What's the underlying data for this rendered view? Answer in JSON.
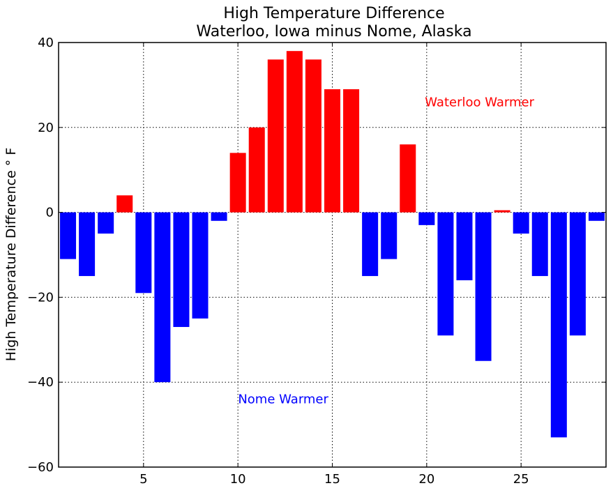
{
  "chart_data": {
    "type": "bar",
    "title": "High Temperature Difference",
    "subtitle": "Waterloo, Iowa minus Nome, Alaska",
    "xlabel": "",
    "ylabel": "High Temperature Difference $^\\circ$F",
    "ylabel_display": "High Temperature Difference ° F",
    "xlim": [
      0.5,
      29.5
    ],
    "ylim": [
      -60,
      40
    ],
    "x_ticks": [
      5,
      10,
      15,
      20,
      25
    ],
    "x_tick_labels": [
      "5",
      "10",
      "15",
      "20",
      "25"
    ],
    "y_ticks": [
      -60,
      -40,
      -20,
      0,
      20,
      40
    ],
    "y_tick_labels": [
      "−60",
      "−40",
      "−20",
      "0",
      "20",
      "40"
    ],
    "grid": true,
    "x": [
      1,
      2,
      3,
      4,
      5,
      6,
      7,
      8,
      9,
      10,
      11,
      12,
      13,
      14,
      15,
      16,
      17,
      18,
      19,
      20,
      21,
      22,
      23,
      24,
      25,
      26,
      27,
      28,
      29
    ],
    "values": [
      -11,
      -15,
      -5,
      4,
      -19,
      -40,
      -27,
      -25,
      -2,
      14,
      20,
      36,
      38,
      36,
      29,
      29,
      -15,
      -11,
      16,
      -3,
      -29,
      -16,
      -35,
      0.5,
      -5,
      -15,
      -53,
      -29,
      -2
    ],
    "positive_color": "#ff0000",
    "negative_color": "#0000ff",
    "annotations": [
      {
        "text": "Waterloo Warmer",
        "x": 22.8,
        "y": 26,
        "color": "#ff0000"
      },
      {
        "text": "Nome Warmer",
        "x": 12.4,
        "y": -44,
        "color": "#0000ff"
      }
    ]
  }
}
